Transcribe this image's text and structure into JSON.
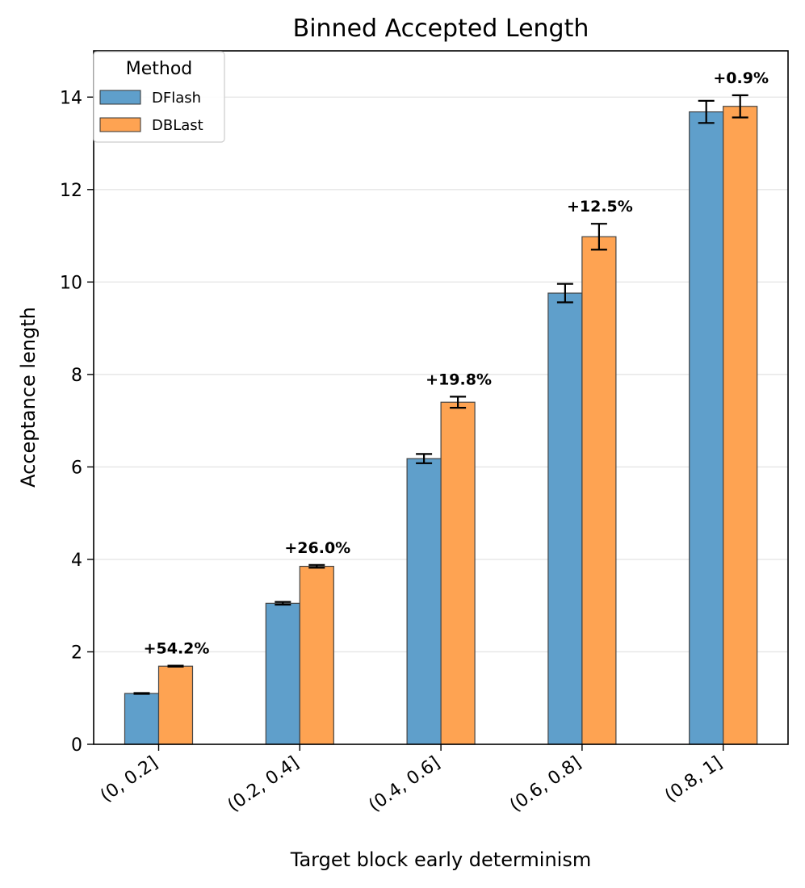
{
  "chart_data": {
    "type": "bar",
    "title": "Binned Accepted Length",
    "xlabel": "Target block early determinism",
    "ylabel": "Acceptance length",
    "categories": [
      "(0, 0.2]",
      "(0.2, 0.4]",
      "(0.4, 0.6]",
      "(0.6, 0.8]",
      "(0.8, 1]"
    ],
    "series": [
      {
        "name": "DFlash",
        "color": "#5f9fcb",
        "values": [
          1.1,
          3.05,
          6.18,
          9.76,
          13.68
        ],
        "errors": [
          0.01,
          0.03,
          0.1,
          0.2,
          0.24
        ]
      },
      {
        "name": "DBLast",
        "color": "#fea352",
        "values": [
          1.69,
          3.85,
          7.4,
          10.98,
          13.8
        ],
        "errors": [
          0.01,
          0.03,
          0.12,
          0.28,
          0.24
        ]
      }
    ],
    "annotations": [
      "+54.2%",
      "+26.0%",
      "+19.8%",
      "+12.5%",
      "+0.9%"
    ],
    "ylim": [
      0,
      15
    ],
    "yticks": [
      0,
      2,
      4,
      6,
      8,
      10,
      12,
      14
    ],
    "grid": "horizontal",
    "legend": {
      "title": "Method",
      "placement": "top-left"
    }
  }
}
